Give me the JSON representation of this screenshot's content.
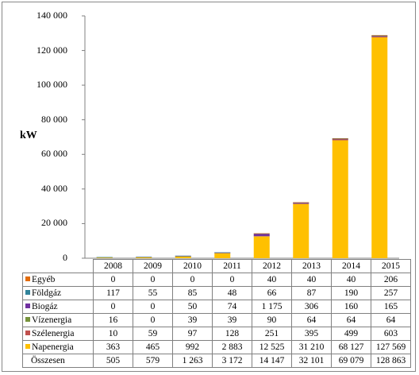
{
  "chart_data": {
    "type": "bar",
    "stacked": true,
    "ylabel": "kW",
    "ylim": [
      0,
      140000
    ],
    "yticks": [
      "0",
      "20 000",
      "40 000",
      "60 000",
      "80 000",
      "100 000",
      "120 000",
      "140 000"
    ],
    "grid": false,
    "categories": [
      "2008",
      "2009",
      "2010",
      "2011",
      "2012",
      "2013",
      "2014",
      "2015"
    ],
    "series": [
      {
        "name": "Egyéb",
        "color": "#e26b0a",
        "values": [
          0,
          0,
          0,
          0,
          40,
          40,
          40,
          206
        ],
        "labels": [
          "0",
          "0",
          "0",
          "0",
          "40",
          "40",
          "40",
          "206"
        ]
      },
      {
        "name": "Földgáz",
        "color": "#31849b",
        "values": [
          117,
          55,
          85,
          48,
          66,
          87,
          190,
          257
        ],
        "labels": [
          "117",
          "55",
          "85",
          "48",
          "66",
          "87",
          "190",
          "257"
        ]
      },
      {
        "name": "Biogáz",
        "color": "#7030a0",
        "values": [
          0,
          0,
          50,
          74,
          1175,
          306,
          160,
          165
        ],
        "labels": [
          "0",
          "0",
          "50",
          "74",
          "1 175",
          "306",
          "160",
          "165"
        ]
      },
      {
        "name": "Vízenergia",
        "color": "#77933c",
        "values": [
          16,
          0,
          39,
          39,
          90,
          64,
          64,
          64
        ],
        "labels": [
          "16",
          "0",
          "39",
          "39",
          "90",
          "64",
          "64",
          "64"
        ]
      },
      {
        "name": "Szélenergia",
        "color": "#c0504d",
        "values": [
          10,
          59,
          97,
          128,
          251,
          395,
          499,
          603
        ],
        "labels": [
          "10",
          "59",
          "97",
          "128",
          "251",
          "395",
          "499",
          "603"
        ]
      },
      {
        "name": "Napenergia",
        "color": "#ffc000",
        "values": [
          363,
          465,
          992,
          2883,
          12525,
          31210,
          68127,
          127569
        ],
        "labels": [
          "363",
          "465",
          "992",
          "2 883",
          "12 525",
          "31 210",
          "68 127",
          "127 569"
        ]
      }
    ],
    "totals": {
      "name": "Összesen",
      "values": [
        505,
        579,
        1263,
        3172,
        14147,
        32101,
        69079,
        128863
      ],
      "labels": [
        "505",
        "579",
        "1 263",
        "3 172",
        "14 147",
        "32 101",
        "69 079",
        "128 863"
      ]
    }
  }
}
